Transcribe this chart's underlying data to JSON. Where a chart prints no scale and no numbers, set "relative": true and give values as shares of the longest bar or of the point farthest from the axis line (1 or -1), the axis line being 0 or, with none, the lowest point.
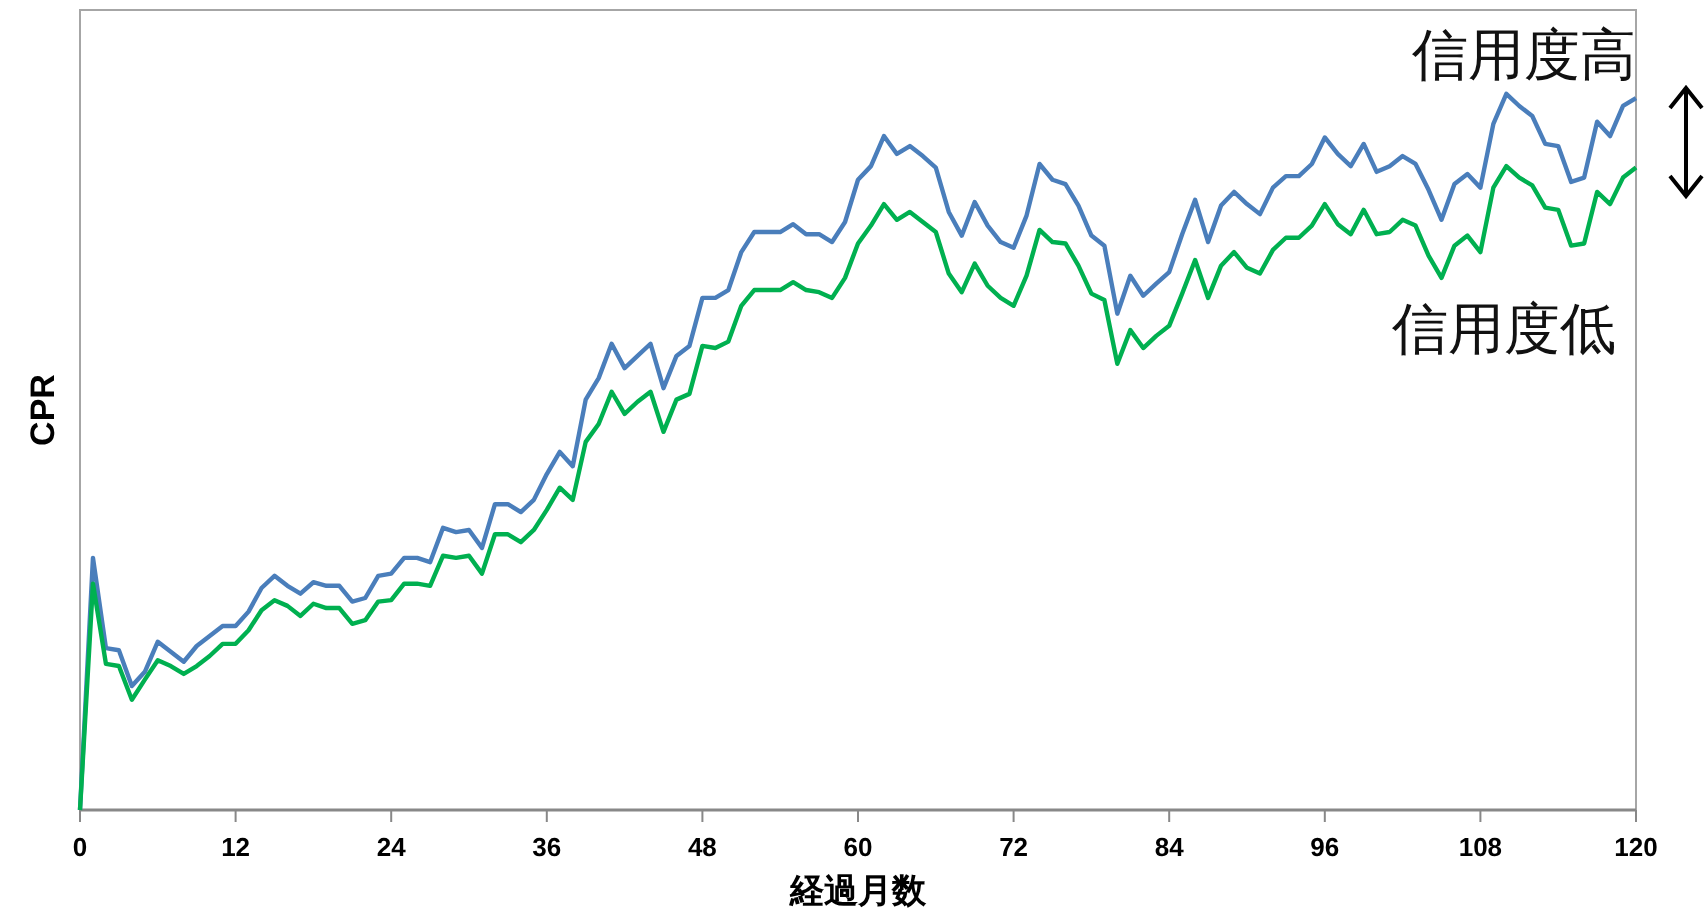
{
  "chart_data": {
    "type": "line",
    "relative": true,
    "xlabel": "経過月数",
    "ylabel": "CPR",
    "xlim": [
      0,
      120
    ],
    "xticks": [
      0,
      12,
      24,
      36,
      48,
      60,
      72,
      84,
      96,
      108,
      120
    ],
    "x": [
      0,
      1,
      2,
      3,
      4,
      5,
      6,
      7,
      8,
      9,
      10,
      11,
      12,
      13,
      14,
      15,
      16,
      17,
      18,
      19,
      20,
      21,
      22,
      23,
      24,
      25,
      26,
      27,
      28,
      29,
      30,
      31,
      32,
      33,
      34,
      35,
      36,
      37,
      38,
      39,
      40,
      41,
      42,
      43,
      44,
      45,
      46,
      47,
      48,
      49,
      50,
      51,
      52,
      53,
      54,
      55,
      56,
      57,
      58,
      59,
      60,
      61,
      62,
      63,
      64,
      65,
      66,
      67,
      68,
      69,
      70,
      71,
      72,
      73,
      74,
      75,
      76,
      77,
      78,
      79,
      80,
      81,
      82,
      83,
      84,
      85,
      86,
      87,
      88,
      89,
      90,
      91,
      92,
      93,
      94,
      95,
      96,
      97,
      98,
      99,
      100,
      101,
      102,
      103,
      104,
      105,
      106,
      107,
      108,
      109,
      110,
      111,
      112,
      113,
      114,
      115,
      116,
      117,
      118,
      119,
      120
    ],
    "series": [
      {
        "name": "信用度高",
        "color": "#4a7ebb",
        "values": [
          0,
          0.352,
          0.226,
          0.223,
          0.173,
          0.193,
          0.235,
          0.221,
          0.207,
          0.229,
          0.243,
          0.257,
          0.257,
          0.277,
          0.31,
          0.327,
          0.313,
          0.302,
          0.318,
          0.313,
          0.313,
          0.291,
          0.296,
          0.327,
          0.33,
          0.352,
          0.352,
          0.346,
          0.394,
          0.388,
          0.391,
          0.366,
          0.427,
          0.427,
          0.416,
          0.433,
          0.469,
          0.5,
          0.48,
          0.573,
          0.603,
          0.651,
          0.617,
          0.634,
          0.651,
          0.589,
          0.634,
          0.648,
          0.715,
          0.715,
          0.726,
          0.779,
          0.807,
          0.807,
          0.807,
          0.818,
          0.804,
          0.804,
          0.793,
          0.821,
          0.88,
          0.899,
          0.941,
          0.916,
          0.927,
          0.913,
          0.897,
          0.835,
          0.802,
          0.849,
          0.816,
          0.793,
          0.785,
          0.83,
          0.902,
          0.88,
          0.874,
          0.844,
          0.802,
          0.788,
          0.693,
          0.746,
          0.718,
          0.735,
          0.751,
          0.804,
          0.852,
          0.793,
          0.844,
          0.863,
          0.846,
          0.832,
          0.869,
          0.885,
          0.885,
          0.902,
          0.939,
          0.916,
          0.899,
          0.93,
          0.891,
          0.899,
          0.913,
          0.902,
          0.866,
          0.824,
          0.874,
          0.888,
          0.869,
          0.958,
          1,
          0.983,
          0.969,
          0.93,
          0.927,
          0.877,
          0.883,
          0.961,
          0.941,
          0.983,
          0.994
        ]
      },
      {
        "name": "信用度低",
        "color": "#00b050",
        "values": [
          0,
          0.316,
          0.204,
          0.201,
          0.154,
          0.182,
          0.209,
          0.201,
          0.19,
          0.201,
          0.215,
          0.232,
          0.232,
          0.251,
          0.279,
          0.293,
          0.285,
          0.271,
          0.288,
          0.282,
          0.282,
          0.26,
          0.265,
          0.291,
          0.293,
          0.316,
          0.316,
          0.313,
          0.355,
          0.352,
          0.355,
          0.33,
          0.385,
          0.385,
          0.374,
          0.391,
          0.419,
          0.45,
          0.433,
          0.514,
          0.539,
          0.584,
          0.553,
          0.57,
          0.584,
          0.528,
          0.573,
          0.581,
          0.648,
          0.645,
          0.654,
          0.704,
          0.726,
          0.726,
          0.726,
          0.737,
          0.726,
          0.723,
          0.715,
          0.743,
          0.791,
          0.816,
          0.846,
          0.824,
          0.835,
          0.821,
          0.807,
          0.749,
          0.723,
          0.763,
          0.732,
          0.715,
          0.704,
          0.746,
          0.81,
          0.793,
          0.791,
          0.76,
          0.721,
          0.712,
          0.623,
          0.67,
          0.645,
          0.662,
          0.676,
          0.721,
          0.768,
          0.715,
          0.76,
          0.779,
          0.757,
          0.749,
          0.782,
          0.799,
          0.799,
          0.816,
          0.846,
          0.818,
          0.804,
          0.838,
          0.804,
          0.807,
          0.824,
          0.816,
          0.774,
          0.743,
          0.788,
          0.802,
          0.779,
          0.869,
          0.899,
          0.883,
          0.872,
          0.841,
          0.838,
          0.788,
          0.791,
          0.863,
          0.846,
          0.883,
          0.897
        ]
      }
    ]
  }
}
